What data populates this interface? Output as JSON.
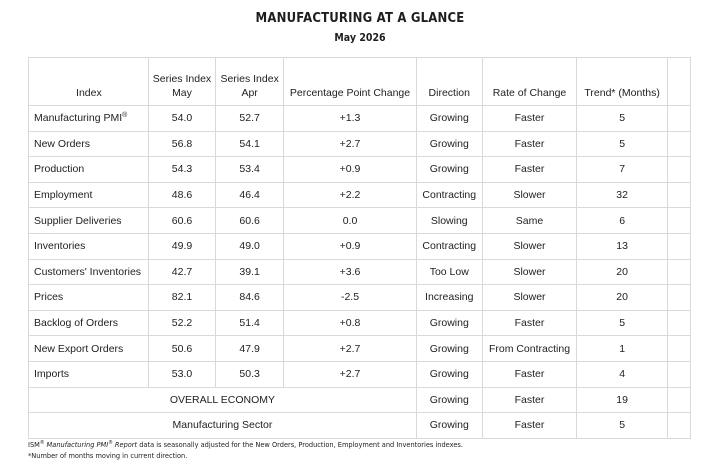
{
  "title": "MANUFACTURING AT A GLANCE",
  "subtitle": "May 2026",
  "headers": {
    "index": "Index",
    "series_may_line1": "Series Index",
    "series_may_line2": "May",
    "series_apr_line1": "Series Index",
    "series_apr_line2": "Apr",
    "change": "Percentage Point Change",
    "direction": "Direction",
    "rate": "Rate of Change",
    "trend": "Trend* (Months)"
  },
  "rows": [
    {
      "index": "Manufacturing PMI",
      "sup": "®",
      "may": "54.0",
      "apr": "52.7",
      "change": "+1.3",
      "direction": "Growing",
      "rate": "Faster",
      "trend": "5"
    },
    {
      "index": "New Orders",
      "may": "56.8",
      "apr": "54.1",
      "change": "+2.7",
      "direction": "Growing",
      "rate": "Faster",
      "trend": "5"
    },
    {
      "index": "Production",
      "may": "54.3",
      "apr": "53.4",
      "change": "+0.9",
      "direction": "Growing",
      "rate": "Faster",
      "trend": "7"
    },
    {
      "index": "Employment",
      "may": "48.6",
      "apr": "46.4",
      "change": "+2.2",
      "direction": "Contracting",
      "rate": "Slower",
      "trend": "32"
    },
    {
      "index": "Supplier Deliveries",
      "may": "60.6",
      "apr": "60.6",
      "change": "0.0",
      "direction": "Slowing",
      "rate": "Same",
      "trend": "6"
    },
    {
      "index": "Inventories",
      "may": "49.9",
      "apr": "49.0",
      "change": "+0.9",
      "direction": "Contracting",
      "rate": "Slower",
      "trend": "13"
    },
    {
      "index": "Customers' Inventories",
      "may": "42.7",
      "apr": "39.1",
      "change": "+3.6",
      "direction": "Too Low",
      "rate": "Slower",
      "trend": "20"
    },
    {
      "index": "Prices",
      "may": "82.1",
      "apr": "84.6",
      "change": "-2.5",
      "direction": "Increasing",
      "rate": "Slower",
      "trend": "20"
    },
    {
      "index": "Backlog of Orders",
      "may": "52.2",
      "apr": "51.4",
      "change": "+0.8",
      "direction": "Growing",
      "rate": "Faster",
      "trend": "5"
    },
    {
      "index": "New Export Orders",
      "may": "50.6",
      "apr": "47.9",
      "change": "+2.7",
      "direction": "Growing",
      "rate": "From Contracting",
      "trend": "1"
    },
    {
      "index": "Imports",
      "may": "53.0",
      "apr": "50.3",
      "change": "+2.7",
      "direction": "Growing",
      "rate": "Faster",
      "trend": "4"
    }
  ],
  "summary_rows": [
    {
      "label": "OVERALL ECONOMY",
      "direction": "Growing",
      "rate": "Faster",
      "trend": "19"
    },
    {
      "label": "Manufacturing Sector",
      "direction": "Growing",
      "rate": "Faster",
      "trend": "5"
    }
  ],
  "footnotes": {
    "ism": "ISM",
    "ism_sup": "®",
    "report_italic_1": " Manufacturing PMI",
    "report_sup": "®",
    "report_italic_2": " Report",
    "note1_rest": " data is seasonally adjusted for the New Orders, Production, Employment and Inventories indexes.",
    "note2": "*Number of months moving in current direction."
  }
}
